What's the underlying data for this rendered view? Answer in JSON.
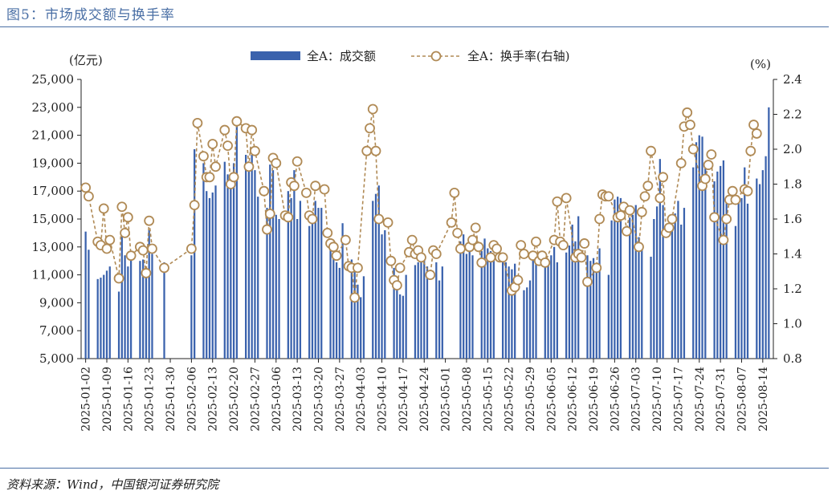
{
  "figure_title": "图5：市场成交额与换手率",
  "source": "资料来源：Wind，中国银河证券研究院",
  "colors": {
    "bar": "#3a62ad",
    "line": "#b08a55",
    "marker_fill": "#ffffff",
    "rule": "#4a6fa5"
  },
  "chart_data": {
    "type": "bar",
    "title": "市场成交额与换手率",
    "ylabel": "(亿元)",
    "y2label": "(%)",
    "ylim": [
      5000,
      25000
    ],
    "y2lim": [
      0.8,
      2.4
    ],
    "yticks": [
      "5,000",
      "7,000",
      "9,000",
      "11,000",
      "13,000",
      "15,000",
      "17,000",
      "19,000",
      "21,000",
      "23,000",
      "25,000"
    ],
    "y2ticks": [
      "0.8",
      "1.0",
      "1.2",
      "1.4",
      "1.6",
      "1.8",
      "2.0",
      "2.2",
      "2.4"
    ],
    "xtick_labels": [
      "2025-01-02",
      "2025-01-09",
      "2025-01-16",
      "2025-01-23",
      "2025-01-30",
      "2025-02-06",
      "2025-02-13",
      "2025-02-20",
      "2025-02-27",
      "2025-03-06",
      "2025-03-13",
      "2025-03-20",
      "2025-03-27",
      "2025-04-03",
      "2025-04-10",
      "2025-04-17",
      "2025-04-24",
      "2025-05-01",
      "2025-05-08",
      "2025-05-15",
      "2025-05-22",
      "2025-05-29",
      "2025-06-05",
      "2025-06-12",
      "2025-06-19",
      "2025-06-26",
      "2025-07-03",
      "2025-07-10",
      "2025-07-17",
      "2025-07-24",
      "2025-07-31",
      "2025-08-07",
      "2025-08-14"
    ],
    "legend": [
      "全A：成交额",
      "全A：换手率(右轴)"
    ],
    "legend_position": "top-center",
    "series": [
      {
        "name": "全A：成交额",
        "axis": "left",
        "kind": "bar",
        "points": [
          [
            1,
            14100
          ],
          [
            2,
            12800
          ],
          [
            5,
            10700
          ],
          [
            6,
            10800
          ],
          [
            7,
            11000
          ],
          [
            8,
            11300
          ],
          [
            9,
            11600
          ],
          [
            12,
            9800
          ],
          [
            13,
            14000
          ],
          [
            14,
            12400
          ],
          [
            15,
            11600
          ],
          [
            16,
            12200
          ],
          [
            19,
            12000
          ],
          [
            20,
            12100
          ],
          [
            21,
            11600
          ],
          [
            22,
            14200
          ],
          [
            23,
            12500
          ],
          [
            27,
            11900
          ],
          [
            36,
            12400
          ],
          [
            37,
            20000
          ],
          [
            40,
            19000
          ],
          [
            41,
            17000
          ],
          [
            42,
            16500
          ],
          [
            43,
            16900
          ],
          [
            44,
            17400
          ],
          [
            47,
            19100
          ],
          [
            48,
            18200
          ],
          [
            49,
            17400
          ],
          [
            50,
            19000
          ],
          [
            51,
            21700
          ],
          [
            54,
            19600
          ],
          [
            55,
            18800
          ],
          [
            56,
            19600
          ],
          [
            57,
            18500
          ],
          [
            58,
            16600
          ],
          [
            61,
            15800
          ],
          [
            62,
            18900
          ],
          [
            63,
            18500
          ],
          [
            64,
            15300
          ],
          [
            65,
            15000
          ],
          [
            68,
            17000
          ],
          [
            69,
            16500
          ],
          [
            70,
            18500
          ],
          [
            71,
            15000
          ],
          [
            72,
            16300
          ],
          [
            75,
            14500
          ],
          [
            76,
            15000
          ],
          [
            77,
            16300
          ],
          [
            78,
            15800
          ],
          [
            79,
            15800
          ],
          [
            82,
            13600
          ],
          [
            83,
            12500
          ],
          [
            84,
            11900
          ],
          [
            85,
            11500
          ],
          [
            86,
            14700
          ],
          [
            89,
            12100
          ],
          [
            90,
            11200
          ],
          [
            91,
            10300
          ],
          [
            92,
            9400
          ],
          [
            93,
            10900
          ],
          [
            96,
            16300
          ],
          [
            97,
            16800
          ],
          [
            98,
            17400
          ],
          [
            99,
            13900
          ],
          [
            100,
            14200
          ],
          [
            103,
            11500
          ],
          [
            104,
            10200
          ],
          [
            105,
            9600
          ],
          [
            106,
            9500
          ],
          [
            107,
            11000
          ],
          [
            110,
            11700
          ],
          [
            111,
            11900
          ],
          [
            112,
            12200
          ],
          [
            113,
            12100
          ],
          [
            114,
            11600
          ],
          [
            117,
            11900
          ],
          [
            118,
            10600
          ],
          [
            119,
            11600
          ],
          [
            125,
            13400
          ],
          [
            126,
            13900
          ],
          [
            127,
            12500
          ],
          [
            128,
            12900
          ],
          [
            129,
            12400
          ],
          [
            132,
            12700
          ],
          [
            133,
            13600
          ],
          [
            134,
            12900
          ],
          [
            135,
            12700
          ],
          [
            136,
            12200
          ],
          [
            139,
            11900
          ],
          [
            140,
            11900
          ],
          [
            141,
            11600
          ],
          [
            142,
            11400
          ],
          [
            143,
            11800
          ],
          [
            146,
            9900
          ],
          [
            147,
            10100
          ],
          [
            148,
            10600
          ],
          [
            149,
            12100
          ],
          [
            150,
            12000
          ],
          [
            153,
            11800
          ],
          [
            154,
            11900
          ],
          [
            155,
            12400
          ],
          [
            156,
            13000
          ],
          [
            157,
            11900
          ],
          [
            160,
            12600
          ],
          [
            161,
            13100
          ],
          [
            162,
            14600
          ],
          [
            163,
            13400
          ],
          [
            164,
            15200
          ],
          [
            167,
            12400
          ],
          [
            168,
            12000
          ],
          [
            169,
            12200
          ],
          [
            170,
            11500
          ],
          [
            171,
            12900
          ],
          [
            174,
            11000
          ],
          [
            175,
            14900
          ],
          [
            176,
            16400
          ],
          [
            177,
            16600
          ],
          [
            178,
            16500
          ],
          [
            181,
            15100
          ],
          [
            182,
            15300
          ],
          [
            183,
            16000
          ],
          [
            184,
            13700
          ],
          [
            185,
            13200
          ],
          [
            188,
            12300
          ],
          [
            189,
            15000
          ],
          [
            190,
            15900
          ],
          [
            191,
            19300
          ],
          [
            192,
            16000
          ],
          [
            195,
            14600
          ],
          [
            196,
            15400
          ],
          [
            197,
            16300
          ],
          [
            198,
            14600
          ],
          [
            199,
            15800
          ],
          [
            202,
            18700
          ],
          [
            203,
            20500
          ],
          [
            204,
            21000
          ],
          [
            205,
            20900
          ],
          [
            206,
            18900
          ],
          [
            209,
            17700
          ],
          [
            210,
            18400
          ],
          [
            211,
            18800
          ],
          [
            212,
            19200
          ],
          [
            213,
            16300
          ],
          [
            216,
            14500
          ],
          [
            217,
            16200
          ],
          [
            218,
            16500
          ],
          [
            219,
            18700
          ],
          [
            220,
            16100
          ],
          [
            223,
            17900
          ],
          [
            224,
            17500
          ],
          [
            225,
            18500
          ],
          [
            226,
            19500
          ],
          [
            227,
            23000
          ]
        ]
      },
      {
        "name": "全A：换手率(右轴)",
        "axis": "right",
        "kind": "line",
        "points": [
          [
            1,
            1.78
          ],
          [
            2,
            1.73
          ],
          [
            5,
            1.47
          ],
          [
            6,
            1.45
          ],
          [
            7,
            1.66
          ],
          [
            8,
            1.43
          ],
          [
            9,
            1.48
          ],
          [
            12,
            1.26
          ],
          [
            13,
            1.67
          ],
          [
            14,
            1.52
          ],
          [
            15,
            1.61
          ],
          [
            16,
            1.39
          ],
          [
            19,
            1.44
          ],
          [
            20,
            1.42
          ],
          [
            21,
            1.29
          ],
          [
            22,
            1.59
          ],
          [
            23,
            1.43
          ],
          [
            27,
            1.32
          ],
          [
            36,
            1.43
          ],
          [
            37,
            1.68
          ],
          [
            38,
            2.15
          ],
          [
            40,
            1.96
          ],
          [
            41,
            1.84
          ],
          [
            42,
            1.84
          ],
          [
            43,
            2.03
          ],
          [
            44,
            1.9
          ],
          [
            47,
            2.11
          ],
          [
            48,
            2.02
          ],
          [
            49,
            1.8
          ],
          [
            50,
            1.84
          ],
          [
            51,
            2.16
          ],
          [
            54,
            2.12
          ],
          [
            55,
            1.9
          ],
          [
            56,
            2.11
          ],
          [
            57,
            1.99
          ],
          [
            60,
            1.76
          ],
          [
            61,
            1.54
          ],
          [
            62,
            1.63
          ],
          [
            63,
            1.95
          ],
          [
            64,
            1.92
          ],
          [
            67,
            1.62
          ],
          [
            68,
            1.61
          ],
          [
            69,
            1.81
          ],
          [
            70,
            1.79
          ],
          [
            71,
            1.93
          ],
          [
            74,
            1.75
          ],
          [
            75,
            1.62
          ],
          [
            76,
            1.6
          ],
          [
            77,
            1.79
          ],
          [
            80,
            1.77
          ],
          [
            81,
            1.52
          ],
          [
            82,
            1.46
          ],
          [
            83,
            1.44
          ],
          [
            84,
            1.39
          ],
          [
            87,
            1.48
          ],
          [
            88,
            1.33
          ],
          [
            89,
            1.32
          ],
          [
            90,
            1.15
          ],
          [
            91,
            1.32
          ],
          [
            94,
            1.99
          ],
          [
            95,
            2.12
          ],
          [
            96,
            2.23
          ],
          [
            97,
            1.99
          ],
          [
            98,
            1.6
          ],
          [
            101,
            1.58
          ],
          [
            102,
            1.36
          ],
          [
            103,
            1.25
          ],
          [
            104,
            1.22
          ],
          [
            105,
            1.32
          ],
          [
            108,
            1.41
          ],
          [
            109,
            1.48
          ],
          [
            110,
            1.4
          ],
          [
            111,
            1.42
          ],
          [
            112,
            1.38
          ],
          [
            115,
            1.28
          ],
          [
            116,
            1.42
          ],
          [
            117,
            1.4
          ],
          [
            122,
            1.58
          ],
          [
            123,
            1.75
          ],
          [
            124,
            1.52
          ],
          [
            125,
            1.43
          ],
          [
            128,
            1.44
          ],
          [
            129,
            1.48
          ],
          [
            130,
            1.55
          ],
          [
            131,
            1.44
          ],
          [
            132,
            1.35
          ],
          [
            135,
            1.38
          ],
          [
            136,
            1.45
          ],
          [
            137,
            1.43
          ],
          [
            138,
            1.38
          ],
          [
            139,
            1.38
          ],
          [
            142,
            1.19
          ],
          [
            143,
            1.21
          ],
          [
            144,
            1.25
          ],
          [
            145,
            1.45
          ],
          [
            146,
            1.4
          ],
          [
            149,
            1.39
          ],
          [
            150,
            1.47
          ],
          [
            151,
            1.36
          ],
          [
            152,
            1.39
          ],
          [
            153,
            1.35
          ],
          [
            156,
            1.48
          ],
          [
            157,
            1.7
          ],
          [
            158,
            1.47
          ],
          [
            159,
            1.45
          ],
          [
            160,
            1.72
          ],
          [
            163,
            1.38
          ],
          [
            164,
            1.4
          ],
          [
            165,
            1.38
          ],
          [
            166,
            1.46
          ],
          [
            167,
            1.24
          ],
          [
            170,
            1.32
          ],
          [
            171,
            1.6
          ],
          [
            172,
            1.74
          ],
          [
            173,
            1.73
          ],
          [
            174,
            1.73
          ],
          [
            177,
            1.61
          ],
          [
            178,
            1.62
          ],
          [
            179,
            1.67
          ],
          [
            180,
            1.53
          ],
          [
            181,
            1.65
          ],
          [
            184,
            1.44
          ],
          [
            185,
            1.64
          ],
          [
            186,
            1.73
          ],
          [
            187,
            1.79
          ],
          [
            188,
            1.99
          ],
          [
            191,
            1.72
          ],
          [
            192,
            1.84
          ],
          [
            193,
            1.52
          ],
          [
            194,
            1.55
          ],
          [
            195,
            1.6
          ],
          [
            198,
            1.92
          ],
          [
            199,
            2.13
          ],
          [
            200,
            2.21
          ],
          [
            201,
            2.14
          ],
          [
            202,
            2.0
          ],
          [
            205,
            1.79
          ],
          [
            206,
            1.83
          ],
          [
            207,
            1.91
          ],
          [
            208,
            1.97
          ],
          [
            209,
            1.61
          ],
          [
            212,
            1.48
          ],
          [
            213,
            1.6
          ],
          [
            214,
            1.71
          ],
          [
            215,
            1.76
          ],
          [
            216,
            1.71
          ],
          [
            219,
            1.77
          ],
          [
            220,
            1.76
          ],
          [
            221,
            1.99
          ],
          [
            222,
            2.14
          ],
          [
            223,
            2.09
          ]
        ]
      }
    ]
  }
}
